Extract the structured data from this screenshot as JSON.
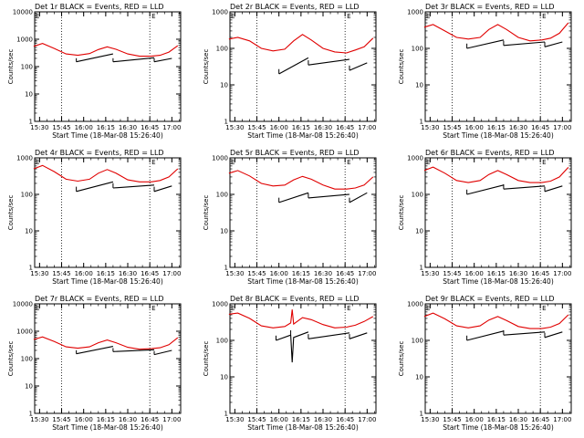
{
  "colors": {
    "events": "#000000",
    "lld": "#e00000",
    "axis": "#000000"
  },
  "chart_data": [
    {
      "type": "line",
      "title": "Det 1r BLACK = Events, RED = LLD",
      "xlabel": "Start Time (18-Mar-08 15:26:40)",
      "ylabel": "Counts/sec",
      "yscale": "log",
      "ylim": [
        1,
        10000
      ],
      "xticks": [
        "15:30",
        "15:45",
        "16:00",
        "16:15",
        "16:30",
        "16:45",
        "17:00"
      ],
      "yticks": [
        "1",
        "10",
        "100",
        "1000",
        "10000"
      ],
      "markers": [
        "15:45",
        "16:45"
      ],
      "flag_label": "E",
      "series": [
        {
          "name": "LLD",
          "color": "#e00000",
          "x": [
            "15:26",
            "15:32",
            "15:40",
            "15:48",
            "15:56",
            "16:04",
            "16:10",
            "16:16",
            "16:22",
            "16:30",
            "16:38",
            "16:46",
            "16:52",
            "16:58",
            "17:04"
          ],
          "y": [
            550,
            700,
            460,
            290,
            260,
            300,
            420,
            530,
            430,
            290,
            240,
            240,
            260,
            340,
            580
          ]
        },
        {
          "name": "Events",
          "color": "#000000",
          "segments": [
            {
              "x": [
                "15:55",
                "16:20"
              ],
              "y": [
                150,
                290
              ]
            },
            {
              "x": [
                "16:20",
                "16:48"
              ],
              "y": [
                150,
                210
              ]
            },
            {
              "x": [
                "16:48",
                "17:00"
              ],
              "y": [
                150,
                200
              ]
            }
          ]
        }
      ]
    },
    {
      "type": "line",
      "title": "Det 2r BLACK = Events, RED = LLD",
      "xlabel": "Start Time (18-Mar-08 15:26:40)",
      "ylabel": "Counts/sec",
      "yscale": "log",
      "ylim": [
        1,
        1000
      ],
      "xticks": [
        "15:30",
        "15:45",
        "16:00",
        "16:15",
        "16:30",
        "16:45",
        "17:00"
      ],
      "yticks": [
        "1",
        "10",
        "100",
        "1000"
      ],
      "markers": [
        "15:45",
        "16:45"
      ],
      "flag_label": "E",
      "series": [
        {
          "name": "LLD",
          "color": "#e00000",
          "x": [
            "15:26",
            "15:32",
            "15:40",
            "15:48",
            "15:56",
            "16:04",
            "16:10",
            "16:16",
            "16:22",
            "16:30",
            "16:38",
            "16:46",
            "16:52",
            "16:58",
            "17:04"
          ],
          "y": [
            180,
            200,
            160,
            100,
            85,
            95,
            160,
            240,
            170,
            100,
            80,
            75,
            90,
            110,
            190
          ]
        },
        {
          "name": "Events",
          "color": "#000000",
          "segments": [
            {
              "x": [
                "16:00",
                "16:20"
              ],
              "y": [
                20,
                55
              ]
            },
            {
              "x": [
                "16:20",
                "16:48"
              ],
              "y": [
                35,
                50
              ]
            },
            {
              "x": [
                "16:48",
                "17:00"
              ],
              "y": [
                25,
                40
              ]
            }
          ]
        }
      ]
    },
    {
      "type": "line",
      "title": "Det 3r BLACK = Events, RED = LLD",
      "xlabel": "Start Time (18-Mar-08 15:26:40)",
      "ylabel": "Counts/sec",
      "yscale": "log",
      "ylim": [
        1,
        1000
      ],
      "xticks": [
        "15:30",
        "15:45",
        "16:00",
        "16:15",
        "16:30",
        "16:45",
        "17:00"
      ],
      "yticks": [
        "1",
        "10",
        "100",
        "1000"
      ],
      "markers": [
        "15:45",
        "16:45"
      ],
      "flag_label": "E",
      "series": [
        {
          "name": "LLD",
          "color": "#e00000",
          "x": [
            "15:26",
            "15:32",
            "15:40",
            "15:48",
            "15:56",
            "16:04",
            "16:10",
            "16:16",
            "16:22",
            "16:30",
            "16:38",
            "16:46",
            "16:52",
            "16:58",
            "17:04"
          ],
          "y": [
            380,
            450,
            300,
            200,
            180,
            200,
            330,
            450,
            330,
            200,
            160,
            170,
            190,
            260,
            500
          ]
        },
        {
          "name": "Events",
          "color": "#000000",
          "segments": [
            {
              "x": [
                "15:55",
                "16:20"
              ],
              "y": [
                100,
                170
              ]
            },
            {
              "x": [
                "16:20",
                "16:48"
              ],
              "y": [
                120,
                150
              ]
            },
            {
              "x": [
                "16:48",
                "17:00"
              ],
              "y": [
                110,
                150
              ]
            }
          ]
        }
      ]
    },
    {
      "type": "line",
      "title": "Det 4r BLACK = Events, RED = LLD",
      "xlabel": "Start Time (18-Mar-08 15:26:40)",
      "ylabel": "Counts/sec",
      "yscale": "log",
      "ylim": [
        1,
        1000
      ],
      "xticks": [
        "15:30",
        "15:45",
        "16:00",
        "16:15",
        "16:30",
        "16:45",
        "17:00"
      ],
      "yticks": [
        "1",
        "10",
        "100",
        "1000"
      ],
      "markers": [
        "15:45",
        "16:45"
      ],
      "flag_label": "E",
      "series": [
        {
          "name": "LLD",
          "color": "#e00000",
          "x": [
            "15:26",
            "15:32",
            "15:40",
            "15:48",
            "15:56",
            "16:04",
            "16:10",
            "16:16",
            "16:22",
            "16:30",
            "16:38",
            "16:46",
            "16:52",
            "16:58",
            "17:04"
          ],
          "y": [
            500,
            620,
            420,
            260,
            230,
            260,
            380,
            480,
            380,
            250,
            220,
            220,
            240,
            300,
            500
          ]
        },
        {
          "name": "Events",
          "color": "#000000",
          "segments": [
            {
              "x": [
                "15:55",
                "16:20"
              ],
              "y": [
                120,
                220
              ]
            },
            {
              "x": [
                "16:20",
                "16:48"
              ],
              "y": [
                150,
                180
              ]
            },
            {
              "x": [
                "16:48",
                "17:00"
              ],
              "y": [
                120,
                170
              ]
            }
          ]
        }
      ]
    },
    {
      "type": "line",
      "title": "Det 5r BLACK = Events, RED = LLD",
      "xlabel": "Start Time (18-Mar-08 15:26:40)",
      "ylabel": "Counts/sec",
      "yscale": "log",
      "ylim": [
        1,
        1000
      ],
      "xticks": [
        "15:30",
        "15:45",
        "16:00",
        "16:15",
        "16:30",
        "16:45",
        "17:00"
      ],
      "yticks": [
        "1",
        "10",
        "100",
        "1000"
      ],
      "markers": [
        "15:45",
        "16:45"
      ],
      "flag_label": "E",
      "series": [
        {
          "name": "LLD",
          "color": "#e00000",
          "x": [
            "15:26",
            "15:32",
            "15:40",
            "15:48",
            "15:56",
            "16:04",
            "16:10",
            "16:16",
            "16:22",
            "16:30",
            "16:38",
            "16:46",
            "16:52",
            "16:58",
            "17:04"
          ],
          "y": [
            380,
            450,
            320,
            200,
            170,
            180,
            250,
            310,
            260,
            180,
            140,
            140,
            150,
            180,
            300
          ]
        },
        {
          "name": "Events",
          "color": "#000000",
          "segments": [
            {
              "x": [
                "16:00",
                "16:20"
              ],
              "y": [
                60,
                110
              ]
            },
            {
              "x": [
                "16:20",
                "16:48"
              ],
              "y": [
                80,
                100
              ]
            },
            {
              "x": [
                "16:48",
                "17:00"
              ],
              "y": [
                60,
                110
              ]
            }
          ]
        }
      ]
    },
    {
      "type": "line",
      "title": "Det 6r BLACK = Events, RED = LLD",
      "xlabel": "Start Time (18-Mar-08 15:26:40)",
      "ylabel": "Counts/sec",
      "yscale": "log",
      "ylim": [
        1,
        1000
      ],
      "xticks": [
        "15:30",
        "15:45",
        "16:00",
        "16:15",
        "16:30",
        "16:45",
        "17:00"
      ],
      "yticks": [
        "1",
        "10",
        "100",
        "1000"
      ],
      "markers": [
        "15:45",
        "16:45"
      ],
      "flag_label": "E",
      "series": [
        {
          "name": "LLD",
          "color": "#e00000",
          "x": [
            "15:26",
            "15:32",
            "15:40",
            "15:48",
            "15:56",
            "16:04",
            "16:10",
            "16:16",
            "16:22",
            "16:30",
            "16:38",
            "16:46",
            "16:52",
            "16:58",
            "17:04"
          ],
          "y": [
            450,
            560,
            380,
            240,
            210,
            240,
            350,
            450,
            350,
            240,
            210,
            210,
            230,
            300,
            550
          ]
        },
        {
          "name": "Events",
          "color": "#000000",
          "segments": [
            {
              "x": [
                "15:55",
                "16:20"
              ],
              "y": [
                100,
                180
              ]
            },
            {
              "x": [
                "16:20",
                "16:48"
              ],
              "y": [
                140,
                170
              ]
            },
            {
              "x": [
                "16:48",
                "17:00"
              ],
              "y": [
                120,
                170
              ]
            }
          ]
        }
      ]
    },
    {
      "type": "line",
      "title": "Det 7r BLACK = Events, RED = LLD",
      "xlabel": "Start Time (18-Mar-08 15:26:40)",
      "ylabel": "Counts/sec",
      "yscale": "log",
      "ylim": [
        1,
        10000
      ],
      "xticks": [
        "15:30",
        "15:45",
        "16:00",
        "16:15",
        "16:30",
        "16:45",
        "17:00"
      ],
      "yticks": [
        "1",
        "10",
        "100",
        "1000",
        "10000"
      ],
      "markers": [
        "15:45",
        "16:45"
      ],
      "flag_label": "E",
      "series": [
        {
          "name": "LLD",
          "color": "#e00000",
          "x": [
            "15:26",
            "15:32",
            "15:40",
            "15:48",
            "15:56",
            "16:04",
            "16:10",
            "16:16",
            "16:22",
            "16:30",
            "16:38",
            "16:46",
            "16:52",
            "16:58",
            "17:04"
          ],
          "y": [
            500,
            620,
            420,
            270,
            240,
            270,
            380,
            480,
            380,
            260,
            220,
            230,
            250,
            320,
            580
          ]
        },
        {
          "name": "Events",
          "color": "#000000",
          "segments": [
            {
              "x": [
                "15:55",
                "16:20"
              ],
              "y": [
                150,
                280
              ]
            },
            {
              "x": [
                "16:20",
                "16:48"
              ],
              "y": [
                180,
                210
              ]
            },
            {
              "x": [
                "16:48",
                "17:00"
              ],
              "y": [
                140,
                200
              ]
            }
          ]
        }
      ]
    },
    {
      "type": "line",
      "title": "Det 8r BLACK = Events, RED = LLD",
      "xlabel": "Start Time (18-Mar-08 15:26:40)",
      "ylabel": "Counts/sec",
      "yscale": "log",
      "ylim": [
        1,
        1000
      ],
      "xticks": [
        "15:30",
        "15:45",
        "16:00",
        "16:15",
        "16:30",
        "16:45",
        "17:00"
      ],
      "yticks": [
        "1",
        "10",
        "100",
        "1000"
      ],
      "markers": [
        "15:45",
        "16:45"
      ],
      "flag_label": "E",
      "series": [
        {
          "name": "LLD",
          "color": "#e00000",
          "x": [
            "15:26",
            "15:32",
            "15:40",
            "15:48",
            "15:56",
            "16:04",
            "16:08",
            "16:09",
            "16:10",
            "16:16",
            "16:22",
            "16:30",
            "16:38",
            "16:46",
            "16:52",
            "16:58",
            "17:04"
          ],
          "y": [
            520,
            560,
            400,
            250,
            220,
            240,
            300,
            700,
            280,
            420,
            370,
            270,
            220,
            230,
            260,
            330,
            450
          ]
        },
        {
          "name": "Events",
          "color": "#000000",
          "segments": [
            {
              "x": [
                "15:58",
                "16:08"
              ],
              "y": [
                100,
                140
              ]
            },
            {
              "x": [
                "16:08",
                "16:09",
                "16:10",
                "16:20"
              ],
              "y": [
                140,
                25,
                120,
                170
              ]
            },
            {
              "x": [
                "16:20",
                "16:48"
              ],
              "y": [
                110,
                160
              ]
            },
            {
              "x": [
                "16:48",
                "17:00"
              ],
              "y": [
                110,
                160
              ]
            }
          ]
        }
      ]
    },
    {
      "type": "line",
      "title": "Det 9r BLACK = Events, RED = LLD",
      "xlabel": "Start Time (18-Mar-08 15:26:40)",
      "ylabel": "Counts/sec",
      "yscale": "log",
      "ylim": [
        1,
        1000
      ],
      "xticks": [
        "15:30",
        "15:45",
        "16:00",
        "16:15",
        "16:30",
        "16:45",
        "17:00"
      ],
      "yticks": [
        "1",
        "10",
        "100",
        "1000"
      ],
      "markers": [
        "15:45",
        "16:45"
      ],
      "flag_label": "E",
      "series": [
        {
          "name": "LLD",
          "color": "#e00000",
          "x": [
            "15:26",
            "15:32",
            "15:40",
            "15:48",
            "15:56",
            "16:04",
            "16:10",
            "16:16",
            "16:22",
            "16:30",
            "16:38",
            "16:46",
            "16:52",
            "16:58",
            "17:04"
          ],
          "y": [
            450,
            560,
            390,
            250,
            220,
            250,
            360,
            450,
            350,
            240,
            210,
            210,
            230,
            290,
            500
          ]
        },
        {
          "name": "Events",
          "color": "#000000",
          "segments": [
            {
              "x": [
                "15:55",
                "16:20"
              ],
              "y": [
                100,
                180
              ]
            },
            {
              "x": [
                "16:20",
                "16:48"
              ],
              "y": [
                140,
                170
              ]
            },
            {
              "x": [
                "16:48",
                "17:00"
              ],
              "y": [
                120,
                170
              ]
            }
          ]
        }
      ]
    }
  ]
}
